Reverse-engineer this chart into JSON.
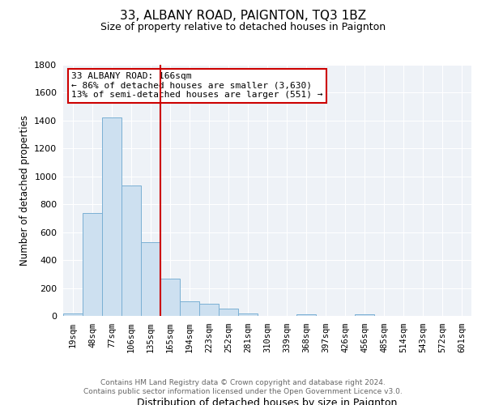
{
  "title": "33, ALBANY ROAD, PAIGNTON, TQ3 1BZ",
  "subtitle": "Size of property relative to detached houses in Paignton",
  "xlabel": "Distribution of detached houses by size in Paignton",
  "ylabel": "Number of detached properties",
  "bin_labels": [
    "19sqm",
    "48sqm",
    "77sqm",
    "106sqm",
    "135sqm",
    "165sqm",
    "194sqm",
    "223sqm",
    "252sqm",
    "281sqm",
    "310sqm",
    "339sqm",
    "368sqm",
    "397sqm",
    "426sqm",
    "456sqm",
    "485sqm",
    "514sqm",
    "543sqm",
    "572sqm",
    "601sqm"
  ],
  "bar_heights": [
    20,
    735,
    1420,
    935,
    530,
    270,
    105,
    90,
    50,
    20,
    0,
    0,
    10,
    0,
    0,
    10,
    0,
    0,
    0,
    0,
    0
  ],
  "bar_color": "#cde0f0",
  "bar_edge_color": "#7ab0d4",
  "vline_color": "#cc0000",
  "vline_bin": 5,
  "annotation_line1": "33 ALBANY ROAD: 166sqm",
  "annotation_line2": "← 86% of detached houses are smaller (3,630)",
  "annotation_line3": "13% of semi-detached houses are larger (551) →",
  "annotation_box_color": "#ffffff",
  "annotation_box_edge_color": "#cc0000",
  "ylim": [
    0,
    1800
  ],
  "yticks": [
    0,
    200,
    400,
    600,
    800,
    1000,
    1200,
    1400,
    1600,
    1800
  ],
  "footer_line1": "Contains HM Land Registry data © Crown copyright and database right 2024.",
  "footer_line2": "Contains public sector information licensed under the Open Government Licence v3.0.",
  "bg_color": "#eef2f7"
}
